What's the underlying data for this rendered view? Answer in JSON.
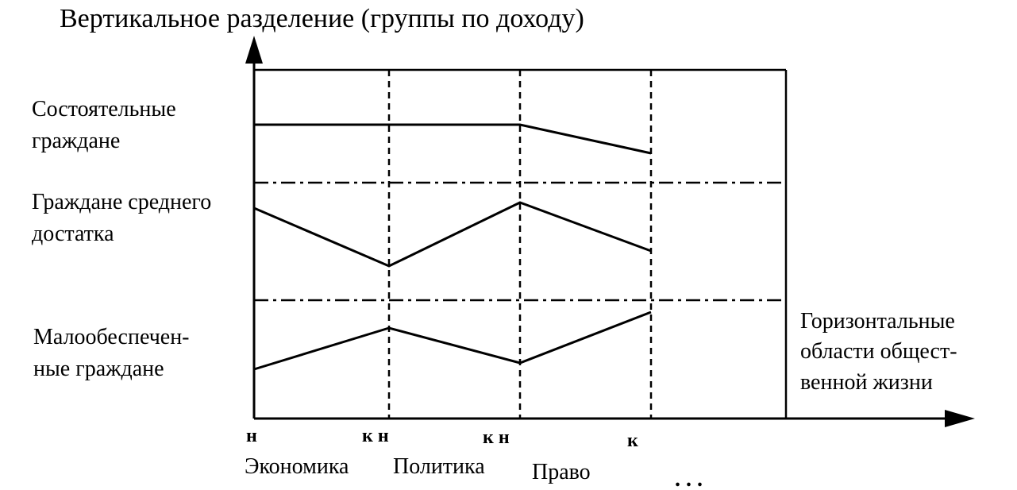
{
  "title": "Вертикальное разделение (группы по доходу)",
  "groups": [
    [
      "Состоятельные",
      "граждане"
    ],
    [
      "Граждане среднего",
      "достатка"
    ],
    [
      "Малообеспечен-",
      "ные граждане"
    ]
  ],
  "horizontal_label": [
    "Горизонтальные",
    "области общест-",
    "венной жизни"
  ],
  "boundary_marks": [
    "н",
    "к н",
    "к н",
    "к"
  ],
  "domains": [
    "Экономика",
    "Политика",
    "Право",
    ". . ."
  ]
}
